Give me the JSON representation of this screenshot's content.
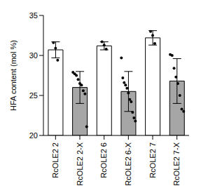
{
  "chart_data": {
    "type": "bar",
    "y_label": "HFA content (mol %)",
    "categories": [
      "RcOLE2 2",
      "RcOLE2 2-X",
      "RcOLE2 6",
      "RcOLE2 6-X",
      "RcOLE2 7",
      "RcOLE2 7-X"
    ],
    "values": [
      30.7,
      26.0,
      31.2,
      25.5,
      32.2,
      26.8
    ],
    "errors": [
      1.0,
      2.0,
      0.5,
      2.5,
      0.9,
      2.8
    ],
    "points": [
      [
        31.6,
        30.9,
        29.4
      ],
      [
        27.9,
        27.7,
        27.5,
        27.0,
        26.5,
        26.3,
        25.6,
        25.2,
        21.1
      ],
      [
        31.7,
        31.3,
        30.8
      ],
      [
        29.7,
        27.2,
        26.6,
        26.3,
        25.9,
        25.3,
        24.5,
        24.2,
        22.9,
        22.2,
        21.8
      ],
      [
        33.0,
        32.5,
        31.5
      ],
      [
        30.1,
        30.0,
        28.4,
        27.3,
        26.5,
        25.0,
        23.3,
        23.0
      ]
    ],
    "colors": [
      "#ffffff",
      "#a6a6a6",
      "#ffffff",
      "#a6a6a6",
      "#ffffff",
      "#a6a6a6"
    ],
    "ylim": [
      20,
      35
    ],
    "yticks": [
      20,
      25,
      30,
      35
    ],
    "grid": false
  }
}
